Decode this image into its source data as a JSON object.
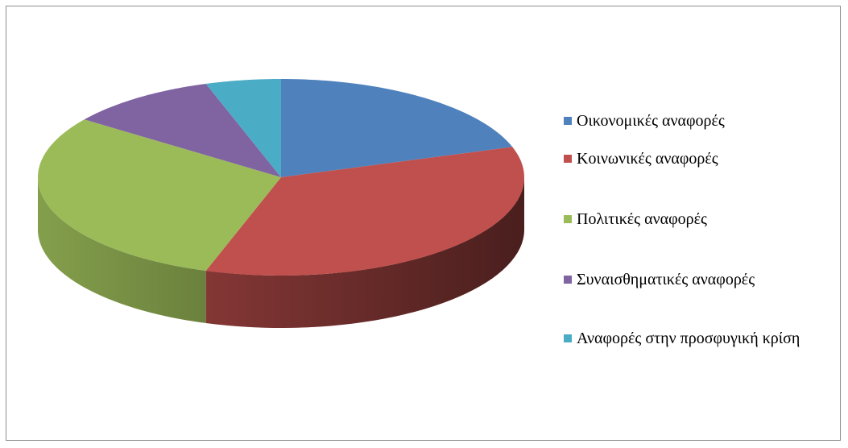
{
  "chart_data": {
    "type": "pie",
    "categories": [
      "Οικονομικές αναφορές",
      "Κοινωνικές αναφορές",
      "Πολιτικές αναφορές",
      "Συναισθηματικές αναφορές",
      "Αναφορές στην προσφυγική κρίση"
    ],
    "values": [
      20,
      35,
      30,
      10,
      5
    ],
    "colors": [
      "#4f81bd",
      "#c0504d",
      "#9bbb59",
      "#8064a2",
      "#4bacc6"
    ],
    "legend": "right"
  }
}
